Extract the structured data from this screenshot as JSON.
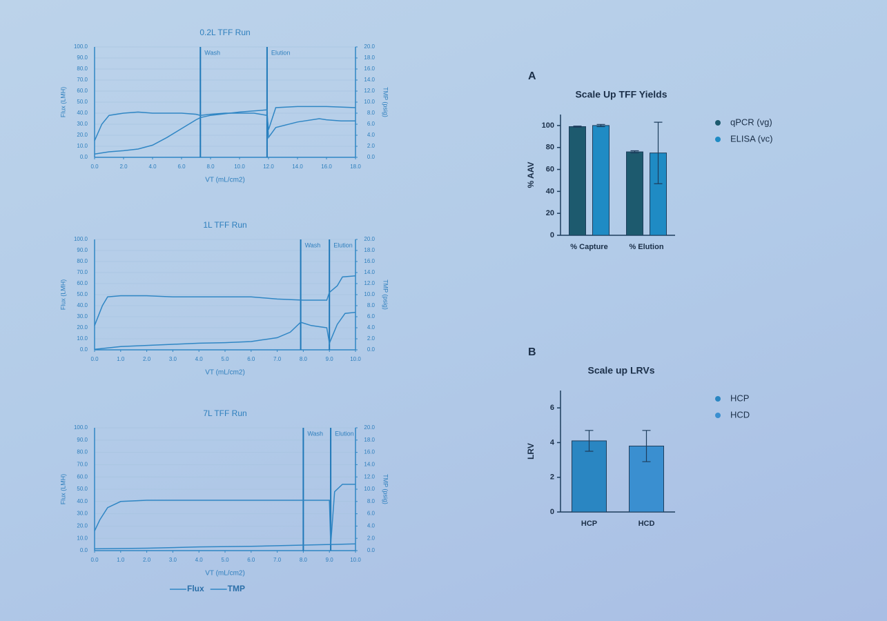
{
  "chart_data": [
    {
      "type": "line",
      "title": "0.2L TFF Run",
      "xlabel": "VT (mL/cm2)",
      "ylabel": "Flux (LMH)",
      "y2label": "TMP (psig)",
      "xlim": [
        0,
        18
      ],
      "xticks": [
        {
          "value": 0,
          "label": "0.0"
        },
        {
          "value": 2,
          "label": "2.0"
        },
        {
          "value": 4,
          "label": "4.0"
        },
        {
          "value": 6,
          "label": "6.0"
        },
        {
          "value": 8,
          "label": "8.0"
        },
        {
          "value": 10,
          "label": "10.0"
        },
        {
          "value": 12,
          "label": "12.0"
        },
        {
          "value": 14,
          "label": "14.0"
        },
        {
          "value": 16,
          "label": "16.0"
        },
        {
          "value": 18,
          "label": "18.0"
        }
      ],
      "ylim": [
        0,
        100
      ],
      "yticks": [
        {
          "value": 0,
          "label": "0.0"
        },
        {
          "value": 10,
          "label": "10.0"
        },
        {
          "value": 20,
          "label": "20.0"
        },
        {
          "value": 30,
          "label": "30.0"
        },
        {
          "value": 40,
          "label": "40.0"
        },
        {
          "value": 50,
          "label": "50.0"
        },
        {
          "value": 60,
          "label": "60.0"
        },
        {
          "value": 70,
          "label": "70.0"
        },
        {
          "value": 80,
          "label": "80.0"
        },
        {
          "value": 90,
          "label": "90.0"
        },
        {
          "value": 100,
          "label": "100.0"
        }
      ],
      "y2lim": [
        0,
        20
      ],
      "y2ticks": [
        {
          "value": 0,
          "label": "0.0"
        },
        {
          "value": 2,
          "label": "2.0"
        },
        {
          "value": 4,
          "label": "4.0"
        },
        {
          "value": 6,
          "label": "6.0"
        },
        {
          "value": 8,
          "label": "8.0"
        },
        {
          "value": 10,
          "label": "10.0"
        },
        {
          "value": 12,
          "label": "12.0"
        },
        {
          "value": 14,
          "label": "14.0"
        },
        {
          "value": 16,
          "label": "16.0"
        },
        {
          "value": 18,
          "label": "18.0"
        },
        {
          "value": 20,
          "label": "20.0"
        }
      ],
      "annotations": [
        {
          "text": "Wash",
          "x": 7.3
        },
        {
          "text": "Elution",
          "x": 11.9
        }
      ],
      "series": [
        {
          "color": "#2f86c4",
          "x": [
            0,
            0.5,
            1,
            2,
            3,
            4,
            5,
            6,
            7,
            7.3,
            8,
            9,
            10,
            11,
            11.9,
            12,
            12.5,
            14,
            16,
            18
          ],
          "values": [
            15,
            30,
            38,
            40,
            41,
            40,
            40,
            40,
            39,
            38,
            39,
            40,
            40,
            40,
            38,
            25,
            45,
            46,
            46,
            45
          ]
        },
        {
          "color": "#2f86c4",
          "axis": "y2",
          "x": [
            0,
            1,
            2,
            3,
            4,
            5,
            6,
            7,
            7.3,
            8,
            10,
            11.9,
            12,
            12.5,
            14,
            15.5,
            16,
            17,
            18
          ],
          "values": [
            0.6,
            1.0,
            1.2,
            1.5,
            2.2,
            3.6,
            5.2,
            6.8,
            7.2,
            7.6,
            8.2,
            8.6,
            3.6,
            5.4,
            6.4,
            7.0,
            6.8,
            6.6,
            6.6
          ]
        }
      ]
    },
    {
      "type": "line",
      "title": "1L TFF Run",
      "xlabel": "VT (mL/cm2)",
      "ylabel": "Flux (LMH)",
      "y2label": "TMP (psig)",
      "xlim": [
        0,
        10
      ],
      "xticks": [
        {
          "value": 0,
          "label": "0.0"
        },
        {
          "value": 1,
          "label": "1.0"
        },
        {
          "value": 2,
          "label": "2.0"
        },
        {
          "value": 3,
          "label": "3.0"
        },
        {
          "value": 4,
          "label": "4.0"
        },
        {
          "value": 5,
          "label": "5.0"
        },
        {
          "value": 6,
          "label": "6.0"
        },
        {
          "value": 7,
          "label": "7.0"
        },
        {
          "value": 8,
          "label": "8.0"
        },
        {
          "value": 9,
          "label": "9.0"
        },
        {
          "value": 10,
          "label": "10.0"
        }
      ],
      "ylim": [
        0,
        100
      ],
      "yticks": [
        {
          "value": 0,
          "label": "0.0"
        },
        {
          "value": 10,
          "label": "10.0"
        },
        {
          "value": 20,
          "label": "20.0"
        },
        {
          "value": 30,
          "label": "30.0"
        },
        {
          "value": 40,
          "label": "40.0"
        },
        {
          "value": 50,
          "label": "50.0"
        },
        {
          "value": 60,
          "label": "60.0"
        },
        {
          "value": 70,
          "label": "70.0"
        },
        {
          "value": 80,
          "label": "80.0"
        },
        {
          "value": 90,
          "label": "90.0"
        },
        {
          "value": 100,
          "label": "100.0"
        }
      ],
      "y2lim": [
        0,
        20
      ],
      "y2ticks": [
        {
          "value": 0,
          "label": "0.0"
        },
        {
          "value": 2,
          "label": "2.0"
        },
        {
          "value": 4,
          "label": "4.0"
        },
        {
          "value": 6,
          "label": "6.0"
        },
        {
          "value": 8,
          "label": "8.0"
        },
        {
          "value": 10,
          "label": "10.0"
        },
        {
          "value": 12,
          "label": "12.0"
        },
        {
          "value": 14,
          "label": "14.0"
        },
        {
          "value": 16,
          "label": "16.0"
        },
        {
          "value": 18,
          "label": "18.0"
        },
        {
          "value": 20,
          "label": "20.0"
        }
      ],
      "annotations": [
        {
          "text": "Wash",
          "x": 7.9
        },
        {
          "text": "Elution",
          "x": 9.0
        }
      ],
      "series": [
        {
          "color": "#2f86c4",
          "x": [
            0,
            0.3,
            0.5,
            1,
            2,
            3,
            4,
            5,
            6,
            7,
            8,
            8.9,
            9,
            9.3,
            9.5,
            10
          ],
          "values": [
            22,
            40,
            48,
            49,
            49,
            48,
            48,
            48,
            48,
            46,
            45,
            45,
            52,
            58,
            66,
            67
          ]
        },
        {
          "color": "#2f86c4",
          "axis": "y2",
          "x": [
            0,
            1,
            2,
            3,
            4,
            5,
            6,
            7,
            7.5,
            7.9,
            8.3,
            8.9,
            9,
            9.3,
            9.6,
            10
          ],
          "values": [
            0.1,
            0.6,
            0.8,
            1.0,
            1.2,
            1.3,
            1.5,
            2.2,
            3.2,
            5.0,
            4.4,
            4.0,
            1.2,
            4.6,
            6.6,
            6.8
          ]
        }
      ]
    },
    {
      "type": "line",
      "title": "7L TFF Run",
      "xlabel": "VT (mL/cm2)",
      "ylabel": "Flux (LMH)",
      "y2label": "TMP (psig)",
      "xlim": [
        0,
        10
      ],
      "xticks": [
        {
          "value": 0,
          "label": "0.0"
        },
        {
          "value": 1,
          "label": "1.0"
        },
        {
          "value": 2,
          "label": "2.0"
        },
        {
          "value": 3,
          "label": "3.0"
        },
        {
          "value": 4,
          "label": "4.0"
        },
        {
          "value": 5,
          "label": "5.0"
        },
        {
          "value": 6,
          "label": "6.0"
        },
        {
          "value": 7,
          "label": "7.0"
        },
        {
          "value": 8,
          "label": "8.0"
        },
        {
          "value": 9,
          "label": "9.0"
        },
        {
          "value": 10,
          "label": "10.0"
        }
      ],
      "ylim": [
        0,
        100
      ],
      "yticks": [
        {
          "value": 0,
          "label": "0.0"
        },
        {
          "value": 10,
          "label": "10.0"
        },
        {
          "value": 20,
          "label": "20.0"
        },
        {
          "value": 30,
          "label": "30.0"
        },
        {
          "value": 40,
          "label": "40.0"
        },
        {
          "value": 50,
          "label": "50.0"
        },
        {
          "value": 60,
          "label": "60.0"
        },
        {
          "value": 70,
          "label": "70.0"
        },
        {
          "value": 80,
          "label": "80.0"
        },
        {
          "value": 90,
          "label": "90.0"
        },
        {
          "value": 100,
          "label": "100.0"
        }
      ],
      "y2lim": [
        0,
        20
      ],
      "y2ticks": [
        {
          "value": 0,
          "label": "0.0"
        },
        {
          "value": 2,
          "label": "2.0"
        },
        {
          "value": 4,
          "label": "4.0"
        },
        {
          "value": 6,
          "label": "6.0"
        },
        {
          "value": 8,
          "label": "8.0"
        },
        {
          "value": 10,
          "label": "10.0"
        },
        {
          "value": 12,
          "label": "12.0"
        },
        {
          "value": 14,
          "label": "14.0"
        },
        {
          "value": 16,
          "label": "16.0"
        },
        {
          "value": 18,
          "label": "18.0"
        },
        {
          "value": 20,
          "label": "20.0"
        }
      ],
      "annotations": [
        {
          "text": "Wash",
          "x": 8.0
        },
        {
          "text": "Elution",
          "x": 9.05
        }
      ],
      "legend": "bottom",
      "series": [
        {
          "name": "Flux",
          "color": "#2f86c4",
          "x": [
            0,
            0.2,
            0.5,
            1,
            2,
            3,
            4,
            5,
            6,
            7,
            8,
            9,
            9.05,
            9.2,
            9.5,
            10
          ],
          "values": [
            16,
            25,
            35,
            40,
            41,
            41,
            41,
            41,
            41,
            41,
            41,
            41,
            5,
            48,
            54,
            54
          ]
        },
        {
          "name": "TMP",
          "color": "#2f86c4",
          "axis": "y2",
          "x": [
            0,
            2,
            4,
            6,
            8,
            9,
            9.1,
            10
          ],
          "values": [
            0.3,
            0.4,
            0.6,
            0.7,
            0.9,
            1.0,
            1.0,
            1.1
          ]
        }
      ]
    },
    {
      "type": "bar",
      "panel": "A",
      "title": "Scale Up TFF Yields",
      "ylabel": "% AAV",
      "categories": [
        "% Capture",
        "% Elution"
      ],
      "ylim": [
        0,
        110
      ],
      "yticks": [
        0,
        20,
        40,
        60,
        80,
        100
      ],
      "series": [
        {
          "name": "qPCR (vg)",
          "color": "#1d5a6e",
          "values": [
            99,
            76
          ],
          "errors": [
            0.5,
            1
          ]
        },
        {
          "name": "ELISA (vc)",
          "color": "#1f8bc4",
          "values": [
            100,
            75
          ],
          "errors": [
            1,
            28
          ]
        }
      ]
    },
    {
      "type": "bar",
      "panel": "B",
      "title": "Scale up LRVs",
      "ylabel": "LRV",
      "categories": [
        "HCP",
        "HCD"
      ],
      "ylim": [
        0,
        7
      ],
      "yticks": [
        0,
        2,
        4,
        6
      ],
      "series": [
        {
          "name": "HCP",
          "color": "#2a86c2",
          "values": [
            4.1,
            null
          ],
          "errors": [
            0.6,
            null
          ]
        },
        {
          "name": "HCD",
          "color": "#3a8fd0",
          "values": [
            null,
            3.8
          ],
          "errors": [
            null,
            0.9
          ]
        }
      ]
    }
  ]
}
